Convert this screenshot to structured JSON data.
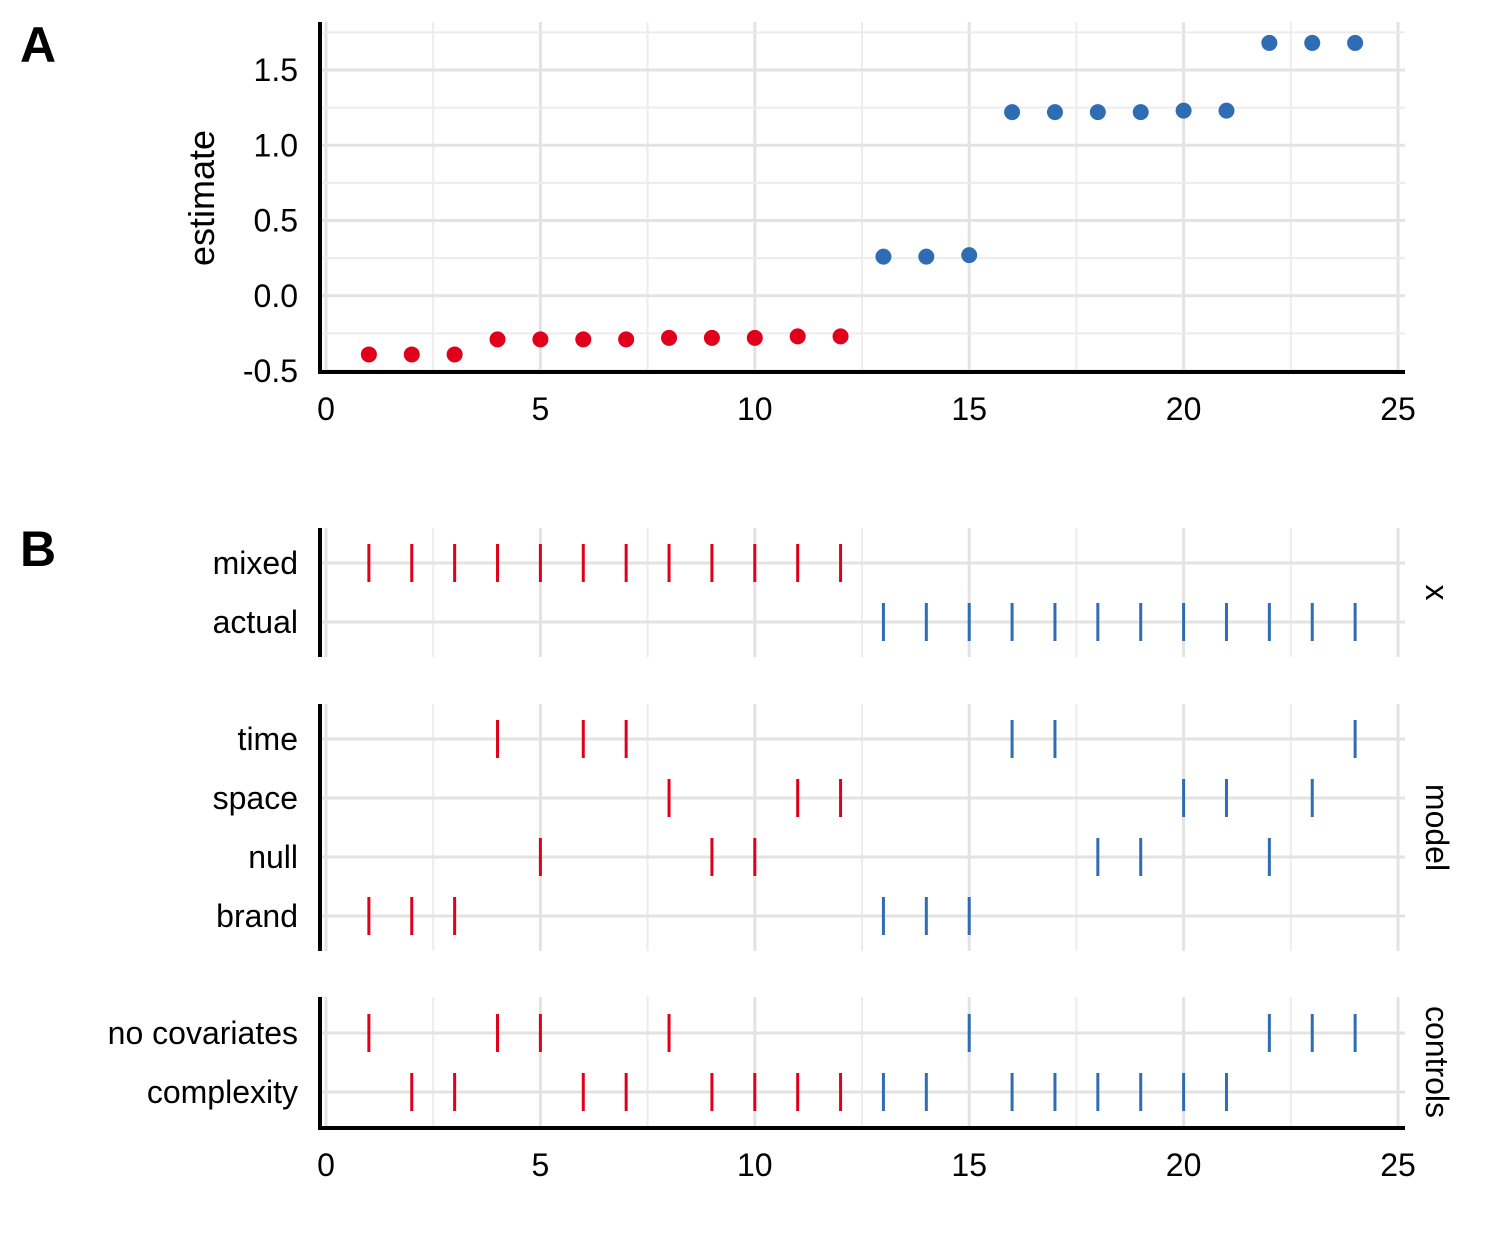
{
  "panel_labels": [
    "A",
    "B"
  ],
  "colors": {
    "negative": "#E0001B",
    "positive": "#2E6DB4"
  },
  "chart_data": [
    {
      "type": "scatter",
      "panel": "A",
      "ylabel": "estimate",
      "xlim": [
        0,
        25
      ],
      "ylim": [
        -0.5,
        1.75
      ],
      "x_ticks": [
        "0",
        "5",
        "10",
        "15",
        "20",
        "25"
      ],
      "y_ticks": [
        "-0.5",
        "0.0",
        "0.5",
        "1.0",
        "1.5"
      ],
      "x": [
        1,
        2,
        3,
        4,
        5,
        6,
        7,
        8,
        9,
        10,
        11,
        12,
        13,
        14,
        15,
        16,
        17,
        18,
        19,
        20,
        21,
        22,
        23,
        24
      ],
      "y": [
        -0.39,
        -0.39,
        -0.39,
        -0.29,
        -0.29,
        -0.29,
        -0.29,
        -0.28,
        -0.28,
        -0.28,
        -0.27,
        -0.27,
        0.26,
        0.26,
        0.27,
        1.22,
        1.22,
        1.22,
        1.22,
        1.23,
        1.23,
        1.68,
        1.68,
        1.68
      ],
      "point_colors": [
        "negative",
        "negative",
        "negative",
        "negative",
        "negative",
        "negative",
        "negative",
        "negative",
        "negative",
        "negative",
        "negative",
        "negative",
        "positive",
        "positive",
        "positive",
        "positive",
        "positive",
        "positive",
        "positive",
        "positive",
        "positive",
        "positive",
        "positive",
        "positive"
      ]
    },
    {
      "type": "scatter",
      "panel": "B",
      "xlim": [
        0,
        25
      ],
      "x_ticks": [
        "0",
        "5",
        "10",
        "15",
        "20",
        "25"
      ],
      "facets": [
        {
          "label": "x",
          "categories": [
            "mixed",
            "actual"
          ],
          "assignment": [
            "mixed",
            "mixed",
            "mixed",
            "mixed",
            "mixed",
            "mixed",
            "mixed",
            "mixed",
            "mixed",
            "mixed",
            "mixed",
            "mixed",
            "actual",
            "actual",
            "actual",
            "actual",
            "actual",
            "actual",
            "actual",
            "actual",
            "actual",
            "actual",
            "actual",
            "actual"
          ]
        },
        {
          "label": "model",
          "categories": [
            "time",
            "space",
            "null",
            "brand"
          ],
          "assignment": [
            "brand",
            "brand",
            "brand",
            "time",
            "null",
            "time",
            "time",
            "space",
            "null",
            "null",
            "space",
            "space",
            "brand",
            "brand",
            "brand",
            "time",
            "time",
            "null",
            "null",
            "space",
            "space",
            "null",
            "space",
            "time"
          ]
        },
        {
          "label": "controls",
          "categories": [
            "no covariates",
            "complexity"
          ],
          "assignment": [
            "no covariates",
            "complexity",
            "complexity",
            "no covariates",
            "no covariates",
            "complexity",
            "complexity",
            "no covariates",
            "complexity",
            "complexity",
            "complexity",
            "complexity",
            "complexity",
            "complexity",
            "no covariates",
            "complexity",
            "complexity",
            "complexity",
            "complexity",
            "complexity",
            "complexity",
            "no covariates",
            "no covariates",
            "no covariates"
          ]
        }
      ]
    }
  ]
}
